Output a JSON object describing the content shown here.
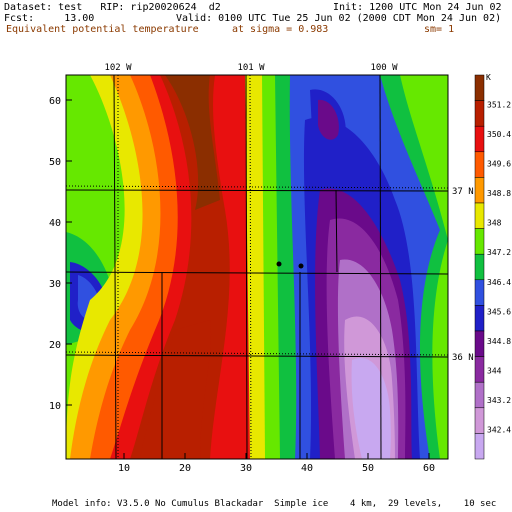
{
  "header": {
    "dataset_line": "Dataset: test   RIP: rip20020624  d2",
    "init_line": "Init: 1200 UTC Mon 24 Jun 02",
    "fcst_line": "Fcst:     13.00",
    "valid_line": "Valid: 0100 UTC Tue 25 Jun 02 (2000 CDT Mon 24 Jun 02)",
    "field_name": "Equivalent potential temperature",
    "sigma_line": "at sigma = 0.983",
    "sm_line": "sm= 1"
  },
  "map": {
    "x_ticks": [
      "10",
      "20",
      "30",
      "40",
      "50",
      "60"
    ],
    "y_ticks": [
      "10",
      "20",
      "30",
      "40",
      "50",
      "60"
    ],
    "longitude_labels": [
      "102 W",
      "101 W",
      "100 W"
    ],
    "latitude_labels": [
      "37 N",
      "36 N"
    ]
  },
  "legend": {
    "unit": "K",
    "levels": [
      "351.2",
      "350.4",
      "349.6",
      "348.8",
      "348",
      "347.2",
      "346.4",
      "345.6",
      "344.8",
      "344",
      "343.2",
      "342.4"
    ],
    "colors": [
      "#8b2e00",
      "#b81f00",
      "#e81010",
      "#ff5a00",
      "#ff9900",
      "#e8e800",
      "#66e800",
      "#10c040",
      "#3050e0",
      "#2020c8",
      "#6a0a8a",
      "#8a2aa0",
      "#b070c8",
      "#d098d8",
      "#c8a8f0"
    ]
  },
  "footer": {
    "model_info": "Model info: V3.5.0 No Cumulus Blackadar  Simple ice    4 km,  29 levels,    10 sec"
  }
}
